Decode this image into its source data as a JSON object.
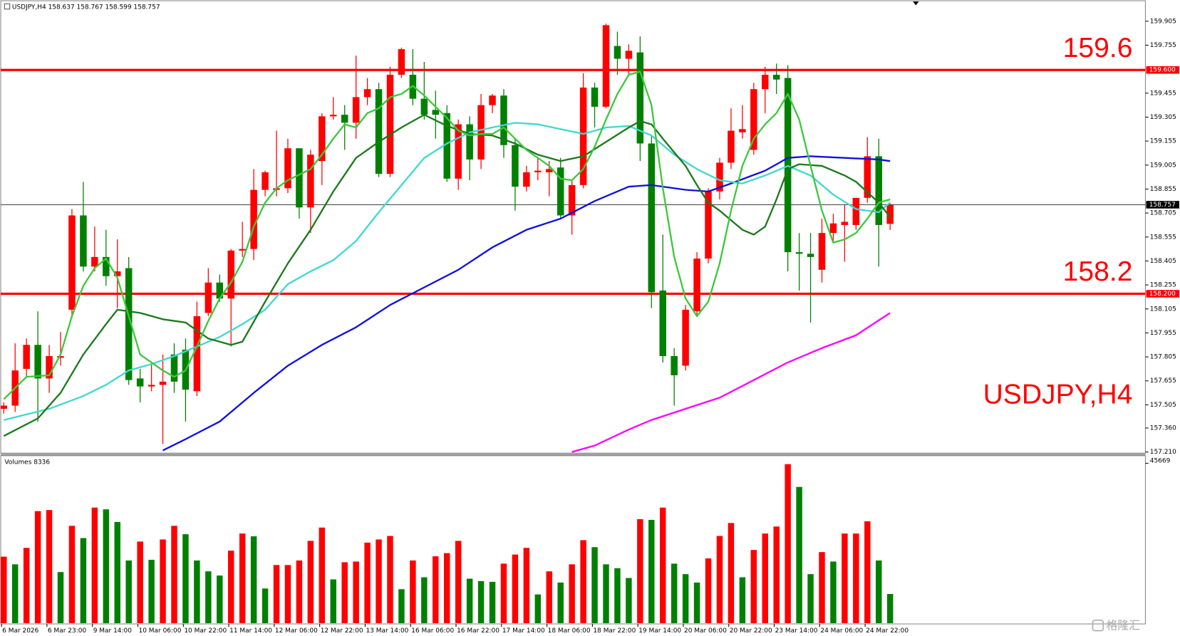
{
  "chart_data": {
    "type": "candlestick",
    "symbol": "USDJPY,H4",
    "categories": [
      "6 Mar 2026",
      null,
      null,
      null,
      "6 Mar 23:00",
      null,
      null,
      null,
      "9 Mar 14:00",
      null,
      null,
      null,
      "10 Mar 06:00",
      null,
      null,
      null,
      "10 Mar 22:00",
      null,
      null,
      null,
      "11 Mar 14:00",
      null,
      null,
      null,
      "12 Mar 06:00",
      null,
      null,
      null,
      "12 Mar 22:00",
      null,
      null,
      null,
      "13 Mar 14:00",
      null,
      null,
      null,
      "16 Mar 06:00",
      null,
      null,
      null,
      "16 Mar 22:00",
      null,
      null,
      null,
      "17 Mar 14:00",
      null,
      null,
      null,
      "18 Mar 06:00",
      null,
      null,
      null,
      "18 Mar 22:00",
      null,
      null,
      null,
      "19 Mar 14:00",
      null,
      null,
      null,
      "20 Mar 06:00",
      null,
      null,
      null,
      "20 Mar 22:00",
      null,
      null,
      null,
      "23 Mar 14:00",
      null,
      null,
      null,
      "24 Mar 06:00",
      null,
      null,
      null,
      "24 Mar 22:00",
      null,
      null
    ],
    "open": [
      157.48,
      157.5,
      157.73,
      157.88,
      157.67,
      157.8,
      158.1,
      158.69,
      158.37,
      158.43,
      158.31,
      158.36,
      157.67,
      157.62,
      157.63,
      157.82,
      157.85,
      157.59,
      158.08,
      158.27,
      158.17,
      158.47,
      158.48,
      158.85,
      158.85,
      158.86,
      159.11,
      158.74,
      159.03,
      159.31,
      159.32,
      159.27,
      159.43,
      159.48,
      158.95,
      159.57,
      159.57,
      159.42,
      159.35,
      159.33,
      158.92,
      159.26,
      159.04,
      159.38,
      159.44,
      159.13,
      158.87,
      158.96,
      158.96,
      158.99,
      158.69,
      158.88,
      159.49,
      159.37,
      159.75,
      159.67,
      159.71,
      159.14,
      158.22,
      157.81,
      157.75,
      158.09,
      158.42,
      158.84,
      159.02,
      159.21,
      159.1,
      159.48,
      159.57,
      159.55,
      158.46,
      158.45,
      158.35,
      158.58,
      158.63,
      158.63,
      158.8,
      159.06,
      158.637
    ],
    "high": [
      157.52,
      157.89,
      157.92,
      158.09,
      157.88,
      157.96,
      158.73,
      158.9,
      158.62,
      158.6,
      158.54,
      158.43,
      157.73,
      157.77,
      157.82,
      157.89,
      157.92,
      158.15,
      158.36,
      158.32,
      158.48,
      158.65,
      158.98,
      158.97,
      159.22,
      159.17,
      159.11,
      159.1,
      159.33,
      159.43,
      159.38,
      159.69,
      159.55,
      159.52,
      159.62,
      159.74,
      159.73,
      159.65,
      159.47,
      159.38,
      159.29,
      159.31,
      159.45,
      159.45,
      159.48,
      159.17,
      159.0,
      159.05,
      159.03,
      159.05,
      158.91,
      159.58,
      159.52,
      159.89,
      159.84,
      159.76,
      159.81,
      159.19,
      158.57,
      157.86,
      158.13,
      158.46,
      158.86,
      159.05,
      159.36,
      159.38,
      159.52,
      159.62,
      159.64,
      159.63,
      158.58,
      158.58,
      158.67,
      158.7,
      158.76,
      158.8,
      159.18,
      159.17,
      158.767
    ],
    "low": [
      157.45,
      157.46,
      157.68,
      157.4,
      157.58,
      157.75,
      158.06,
      158.34,
      158.34,
      158.25,
      158.11,
      157.63,
      157.52,
      157.59,
      157.26,
      157.58,
      157.4,
      157.56,
      158.06,
      158.15,
      157.87,
      158.43,
      158.41,
      158.81,
      158.81,
      158.83,
      158.67,
      158.58,
      158.88,
      159.29,
      159.1,
      159.17,
      159.38,
      158.93,
      158.93,
      159.55,
      159.38,
      159.29,
      159.17,
      158.9,
      158.85,
      158.91,
      158.98,
      159.33,
      159.05,
      158.72,
      158.84,
      158.91,
      158.81,
      158.67,
      158.57,
      158.86,
      159.24,
      159.36,
      159.57,
      159.57,
      159.03,
      158.11,
      157.77,
      157.5,
      157.72,
      158.06,
      158.39,
      158.79,
      158.98,
      159.17,
      159.07,
      159.33,
      159.45,
      158.34,
      158.22,
      158.02,
      158.27,
      158.52,
      158.4,
      158.6,
      158.77,
      158.37,
      158.599
    ],
    "close": [
      157.5,
      157.72,
      157.88,
      157.67,
      157.81,
      157.81,
      158.69,
      158.37,
      158.43,
      158.31,
      158.34,
      157.66,
      157.62,
      157.63,
      157.65,
      157.65,
      157.6,
      158.06,
      158.27,
      158.17,
      158.47,
      158.48,
      158.85,
      158.96,
      158.86,
      159.11,
      158.74,
      159.07,
      159.31,
      159.32,
      159.27,
      159.43,
      159.48,
      158.95,
      159.57,
      159.73,
      159.42,
      159.32,
      159.32,
      158.92,
      159.26,
      159.04,
      159.38,
      159.44,
      159.13,
      158.87,
      158.96,
      158.97,
      158.98,
      158.69,
      158.88,
      159.49,
      159.37,
      159.88,
      159.67,
      159.72,
      159.14,
      158.21,
      157.81,
      157.69,
      158.1,
      158.42,
      158.84,
      159.02,
      159.22,
      159.23,
      159.48,
      159.57,
      159.54,
      158.46,
      158.45,
      158.43,
      158.58,
      158.64,
      158.65,
      158.8,
      159.06,
      158.63,
      158.757
    ],
    "up_color": "#ff0000",
    "down_color": "#008000",
    "ylim": [
      157.201,
      160.033
    ],
    "yticks": [
      159.905,
      159.755,
      159.455,
      159.305,
      159.155,
      159.005,
      158.855,
      158.705,
      158.555,
      158.405,
      158.255,
      158.105,
      157.955,
      157.805,
      157.655,
      157.505,
      {
        "value": 157.36,
        "label": "157.360"
      },
      {
        "value": 157.21,
        "label": "157.210"
      }
    ],
    "hlines": [
      {
        "value": 159.6,
        "label": "159.600",
        "color": "#ff0000"
      },
      {
        "value": 158.2,
        "label": "158.200",
        "color": "#ff0000"
      }
    ],
    "current_price": {
      "value": 158.757,
      "color": "#000000"
    },
    "series": [
      {
        "color": "#1010e0",
        "x": [
          14,
          16,
          19,
          22,
          25,
          28,
          31,
          34,
          37,
          40,
          43,
          46,
          49,
          52,
          55,
          57,
          60,
          62,
          64,
          67,
          69,
          71,
          74,
          77,
          78
        ],
        "values": [
          157.22,
          157.29,
          157.4,
          157.58,
          157.75,
          157.88,
          157.99,
          158.13,
          158.24,
          158.35,
          158.49,
          158.6,
          158.67,
          158.78,
          158.87,
          158.88,
          158.85,
          158.84,
          158.89,
          158.97,
          159.05,
          159.06,
          159.05,
          159.04,
          159.03
        ]
      },
      {
        "color": "#ff00ff",
        "x": [
          50,
          52,
          55,
          57,
          60,
          63,
          66,
          69,
          72,
          75,
          78
        ],
        "values": [
          157.21,
          157.25,
          157.35,
          157.41,
          157.48,
          157.55,
          157.66,
          157.77,
          157.86,
          157.94,
          158.08
        ]
      },
      {
        "color": "#40d8d0",
        "x": [
          0,
          4,
          7,
          9,
          11,
          13,
          15,
          17,
          19,
          21,
          23,
          25,
          27,
          29,
          31,
          33,
          35,
          37,
          39,
          41,
          43,
          45,
          47,
          49,
          51,
          53,
          55,
          57,
          59,
          61,
          63,
          65,
          67,
          69,
          71,
          73,
          75,
          77,
          78
        ],
        "values": [
          157.41,
          157.48,
          157.56,
          157.63,
          157.72,
          157.76,
          157.81,
          157.87,
          157.93,
          158.01,
          158.1,
          158.26,
          158.34,
          158.41,
          158.53,
          158.71,
          158.88,
          159.05,
          159.14,
          159.21,
          159.24,
          159.27,
          159.26,
          159.23,
          159.2,
          159.24,
          159.25,
          159.19,
          159.07,
          158.98,
          158.91,
          158.89,
          158.94,
          159.0,
          158.94,
          158.82,
          158.73,
          158.71,
          158.77
        ]
      },
      {
        "color": "#1a7a1a",
        "x": [
          0,
          3,
          5,
          7,
          9,
          10,
          12,
          14,
          16,
          18,
          20,
          21,
          23,
          25,
          27,
          29,
          31,
          33,
          35,
          37,
          39,
          41,
          43,
          45,
          47,
          49,
          51,
          53,
          55,
          56,
          57,
          58,
          60,
          61,
          62,
          63,
          65,
          66,
          67,
          68,
          69,
          70,
          72,
          74,
          75,
          77,
          78
        ],
        "values": [
          157.31,
          157.42,
          157.58,
          157.82,
          158.01,
          158.1,
          158.08,
          158.04,
          158.02,
          157.92,
          157.88,
          157.9,
          158.15,
          158.39,
          158.6,
          158.84,
          159.05,
          159.15,
          159.24,
          159.32,
          159.25,
          159.2,
          159.19,
          159.14,
          159.07,
          159.03,
          159.06,
          159.15,
          159.24,
          159.28,
          159.26,
          159.17,
          159.0,
          158.88,
          158.77,
          158.72,
          158.6,
          158.57,
          158.62,
          158.79,
          158.98,
          159.01,
          159.0,
          158.94,
          158.9,
          158.77,
          158.68
        ]
      },
      {
        "color": "#3cc83c",
        "x": [
          0,
          2,
          4,
          5,
          6,
          7,
          8,
          9,
          10,
          11,
          12,
          14,
          15,
          16,
          17,
          18,
          19,
          20,
          21,
          22,
          23,
          24,
          25,
          27,
          28,
          29,
          30,
          31,
          32,
          33,
          34,
          35,
          36,
          37,
          38,
          39,
          40,
          41,
          42,
          43,
          44,
          45,
          46,
          47,
          48,
          49,
          50,
          51,
          52,
          53,
          54,
          55,
          56,
          57,
          58,
          59,
          60,
          61,
          62,
          63,
          64,
          65,
          66,
          67,
          68,
          69,
          70,
          71,
          72,
          73,
          74,
          75,
          76,
          77,
          78
        ],
        "values": [
          157.54,
          157.68,
          157.69,
          157.82,
          158.06,
          158.25,
          158.36,
          158.42,
          158.3,
          158.06,
          157.82,
          157.72,
          157.68,
          157.72,
          157.87,
          158.03,
          158.17,
          158.27,
          158.4,
          158.62,
          158.77,
          158.86,
          158.91,
          158.98,
          159.07,
          159.17,
          159.26,
          159.24,
          159.33,
          159.36,
          159.43,
          159.45,
          159.5,
          159.44,
          159.37,
          159.3,
          159.22,
          159.19,
          159.2,
          159.2,
          159.24,
          159.17,
          159.1,
          159.05,
          159.0,
          158.92,
          158.91,
          158.98,
          159.12,
          159.29,
          159.45,
          159.57,
          159.59,
          159.38,
          158.86,
          158.43,
          158.17,
          158.06,
          158.15,
          158.39,
          158.72,
          159.0,
          159.17,
          159.26,
          159.33,
          159.45,
          159.29,
          159.0,
          158.72,
          158.52,
          158.54,
          158.58,
          158.67,
          158.77,
          158.79
        ]
      }
    ],
    "volumes": {
      "label": "Volumes",
      "values": [
        19000,
        16800,
        21500,
        32000,
        32300,
        14600,
        27800,
        24300,
        33000,
        32500,
        28900,
        17900,
        23300,
        18100,
        23900,
        27800,
        25400,
        17900,
        14800,
        13600,
        20700,
        25600,
        24800,
        9900,
        16600,
        16600,
        17900,
        23500,
        27300,
        12500,
        17400,
        17600,
        23000,
        23900,
        24900,
        9700,
        17900,
        13100,
        19100,
        20000,
        23500,
        12700,
        12000,
        11800,
        17000,
        19600,
        21500,
        8200,
        14800,
        11600,
        16800,
        23700,
        21700,
        16800,
        15700,
        12900,
        29700,
        29500,
        33000,
        17000,
        14000,
        11600,
        18500,
        24900,
        28600,
        13100,
        20900,
        25600,
        27600,
        45400,
        38900,
        14000,
        20300,
        17600,
        25600,
        25600,
        29100,
        17900,
        8336
      ],
      "up_color": "#ff0000",
      "down_color": "#008000",
      "ylim": [
        0,
        45669
      ],
      "yticks": [
        45669
      ]
    },
    "watermark": "格隆汇"
  }
}
